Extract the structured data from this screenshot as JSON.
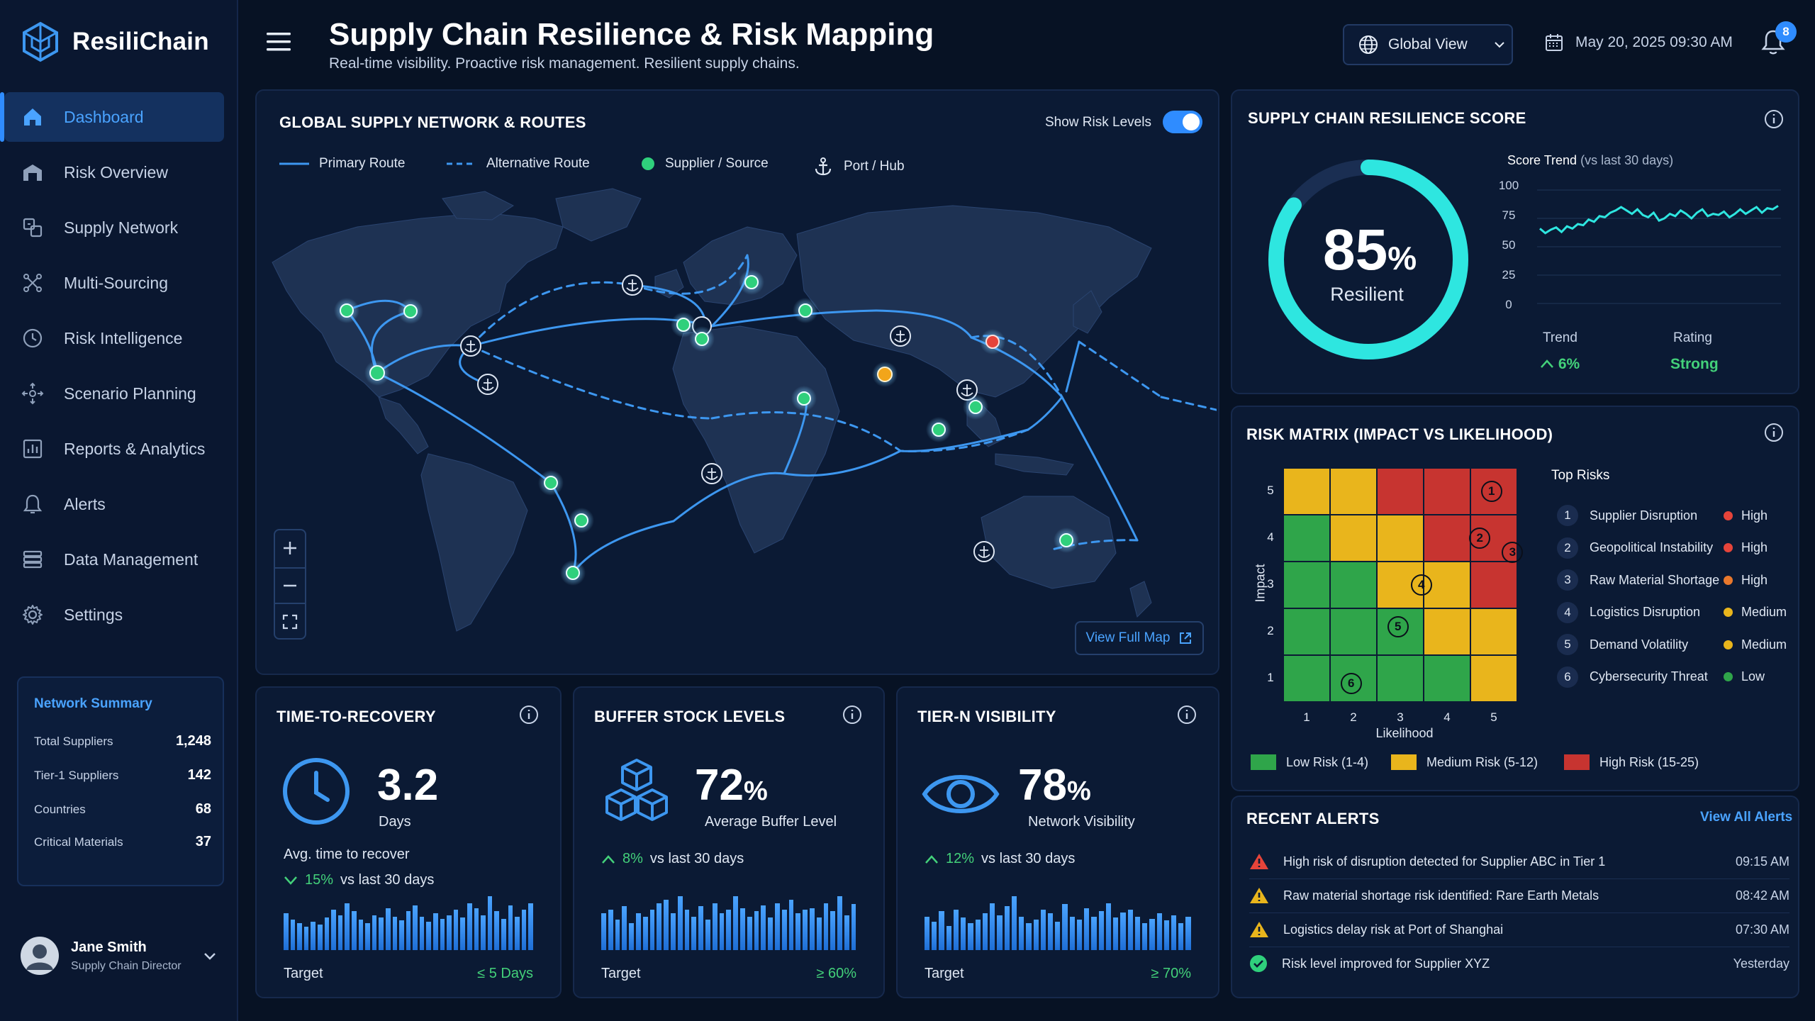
{
  "brand": {
    "name": "ResiliChain"
  },
  "nav": [
    {
      "label": "Dashboard",
      "icon": "home-icon",
      "active": true
    },
    {
      "label": "Risk Overview",
      "icon": "warehouse-icon"
    },
    {
      "label": "Supply Network",
      "icon": "network-icon"
    },
    {
      "label": "Multi-Sourcing",
      "icon": "multi-sourcing-icon"
    },
    {
      "label": "Risk Intelligence",
      "icon": "clock-icon"
    },
    {
      "label": "Scenario Planning",
      "icon": "scenario-icon"
    },
    {
      "label": "Reports & Analytics",
      "icon": "reports-icon"
    },
    {
      "label": "Alerts",
      "icon": "bell-icon"
    },
    {
      "label": "Data Management",
      "icon": "database-icon"
    },
    {
      "label": "Settings",
      "icon": "gear-icon"
    }
  ],
  "summary": {
    "title": "Network Summary",
    "rows": [
      {
        "label": "Total Suppliers",
        "value": "1,248"
      },
      {
        "label": "Tier-1 Suppliers",
        "value": "142"
      },
      {
        "label": "Countries",
        "value": "68"
      },
      {
        "label": "Critical Materials",
        "value": "37"
      }
    ]
  },
  "user": {
    "name": "Jane Smith",
    "role": "Supply Chain Director"
  },
  "header": {
    "title": "Supply Chain Resilience & Risk Mapping",
    "subtitle": "Real-time visibility. Proactive risk management. Resilient supply chains.",
    "view": "Global View",
    "datetime": "May 20, 2025 09:30 AM",
    "notifications": "8"
  },
  "map": {
    "title": "GLOBAL SUPPLY NETWORK & ROUTES",
    "toggle_label": "Show Risk Levels",
    "legend": {
      "primary": "Primary Route",
      "alternative": "Alternative Route",
      "supplier": "Supplier / Source",
      "port": "Port / Hub"
    },
    "view_full": "View Full Map",
    "colors": {
      "route": "#3d97f0",
      "supplier": "#2fd07c",
      "warning": "#f2a51a",
      "risk": "#e6443a"
    }
  },
  "score": {
    "title": "SUPPLY CHAIN RESILIENCE SCORE",
    "value": "85",
    "unit": "%",
    "label": "Resilient",
    "fraction": 0.85,
    "trend_title": "Score Trend",
    "trend_period": "(vs last 30 days)",
    "yticks": [
      "100",
      "75",
      "50",
      "25",
      "0"
    ],
    "trend_values": [
      66,
      62,
      65,
      67,
      63,
      68,
      66,
      70,
      69,
      74,
      72,
      77,
      76,
      80,
      82,
      85,
      82,
      79,
      83,
      78,
      76,
      80,
      73,
      75,
      79,
      77,
      82,
      79,
      75,
      80,
      83,
      77,
      79,
      78,
      81,
      76,
      79,
      83,
      79,
      82,
      85,
      80,
      84,
      83,
      86
    ],
    "trend_label": "Trend",
    "trend_value": "6%",
    "rating_label": "Rating",
    "rating_value": "Strong"
  },
  "matrix": {
    "title": "RISK MATRIX (IMPACT VS LIKELIHOOD)",
    "y_title": "Impact",
    "x_title": "Likelihood",
    "x_ticks": [
      "1",
      "2",
      "3",
      "4",
      "5"
    ],
    "y_ticks": [
      "5",
      "4",
      "3",
      "2",
      "1"
    ],
    "colors": {
      "low": "#2fa54a",
      "medium": "#e9b51c",
      "high": "#c73430"
    },
    "grid": [
      [
        "medium",
        "medium",
        "high",
        "high",
        "high"
      ],
      [
        "low",
        "medium",
        "medium",
        "high",
        "high"
      ],
      [
        "low",
        "low",
        "medium",
        "medium",
        "high"
      ],
      [
        "low",
        "low",
        "low",
        "medium",
        "medium"
      ],
      [
        "low",
        "low",
        "low",
        "low",
        "medium"
      ]
    ],
    "markers": [
      {
        "n": "1",
        "likelihood": 4.95,
        "impact": 5.0
      },
      {
        "n": "2",
        "likelihood": 4.7,
        "impact": 4.0
      },
      {
        "n": "3",
        "likelihood": 5.4,
        "impact": 3.7
      },
      {
        "n": "4",
        "likelihood": 3.45,
        "impact": 3.0
      },
      {
        "n": "5",
        "likelihood": 2.95,
        "impact": 2.1
      },
      {
        "n": "6",
        "likelihood": 1.95,
        "impact": 0.9
      }
    ],
    "top_risks_title": "Top Risks",
    "top_risks": [
      {
        "n": "1",
        "name": "Supplier Disruption",
        "level": "High",
        "color": "#e6443a"
      },
      {
        "n": "2",
        "name": "Geopolitical Instability",
        "level": "High",
        "color": "#e6443a"
      },
      {
        "n": "3",
        "name": "Raw Material Shortage",
        "level": "High",
        "color": "#e9782c"
      },
      {
        "n": "4",
        "name": "Logistics Disruption",
        "level": "Medium",
        "color": "#e9b51c"
      },
      {
        "n": "5",
        "name": "Demand Volatility",
        "level": "Medium",
        "color": "#e9b51c"
      },
      {
        "n": "6",
        "name": "Cybersecurity Threat",
        "level": "Low",
        "color": "#2fa54a"
      }
    ],
    "legend": {
      "low": "Low Risk (1-4)",
      "medium": "Medium Risk (5-12)",
      "high": "High Risk (15-25)"
    }
  },
  "alerts": {
    "title": "RECENT ALERTS",
    "view_all": "View All Alerts",
    "items": [
      {
        "text": "High risk of disruption detected for Supplier ABC in Tier 1",
        "time": "09:15 AM",
        "icon": "danger-icon",
        "color": "#e6443a"
      },
      {
        "text": "Raw material shortage risk identified: Rare Earth Metals",
        "time": "08:42 AM",
        "icon": "warning-icon",
        "color": "#e9b51c"
      },
      {
        "text": "Logistics delay risk at Port of Shanghai",
        "time": "07:30 AM",
        "icon": "warning-icon",
        "color": "#e9b51c"
      },
      {
        "text": "Risk level improved for Supplier XYZ",
        "time": "Yesterday",
        "icon": "check-icon",
        "color": "#2fd07c"
      }
    ]
  },
  "kpis": [
    {
      "title": "TIME-TO-RECOVERY",
      "value": "3.2",
      "unit": "",
      "sub": "Days",
      "desc": "Avg. time to recover",
      "change": "15%",
      "change_text": "vs last 30 days",
      "direction": "down",
      "target_label": "Target",
      "target": "≤ 5 Days",
      "icon": "clock-icon",
      "bars": [
        55,
        45,
        40,
        35,
        42,
        38,
        48,
        60,
        52,
        70,
        58,
        45,
        40,
        52,
        48,
        62,
        50,
        44,
        58,
        66,
        50,
        42,
        55,
        46,
        52,
        60,
        48,
        70,
        62,
        52,
        80,
        58,
        46,
        66,
        50,
        60,
        70
      ]
    },
    {
      "title": "BUFFER STOCK LEVELS",
      "value": "72",
      "unit": "%",
      "sub": "Average Buffer Level",
      "desc": "",
      "change": "8%",
      "change_text": "vs last 30 days",
      "direction": "up",
      "target_label": "Target",
      "target": "≥ 60%",
      "icon": "boxes-icon",
      "bars": [
        55,
        60,
        45,
        65,
        40,
        55,
        50,
        60,
        70,
        75,
        55,
        80,
        60,
        50,
        65,
        45,
        70,
        55,
        60,
        80,
        62,
        50,
        58,
        66,
        48,
        70,
        60,
        75,
        55,
        60,
        62,
        48,
        70,
        58,
        80,
        52,
        68
      ]
    },
    {
      "title": "TIER-N VISIBILITY",
      "value": "78",
      "unit": "%",
      "sub": "Network Visibility",
      "desc": "",
      "change": "12%",
      "change_text": "vs last 30 days",
      "direction": "up",
      "target_label": "Target",
      "target": "≥ 70%",
      "icon": "eye-icon",
      "bars": [
        50,
        42,
        58,
        36,
        60,
        48,
        40,
        45,
        55,
        70,
        52,
        65,
        80,
        50,
        40,
        45,
        60,
        55,
        42,
        68,
        50,
        45,
        62,
        50,
        58,
        70,
        48,
        56,
        60,
        50,
        40,
        46,
        55,
        44,
        52,
        40,
        50
      ]
    }
  ]
}
